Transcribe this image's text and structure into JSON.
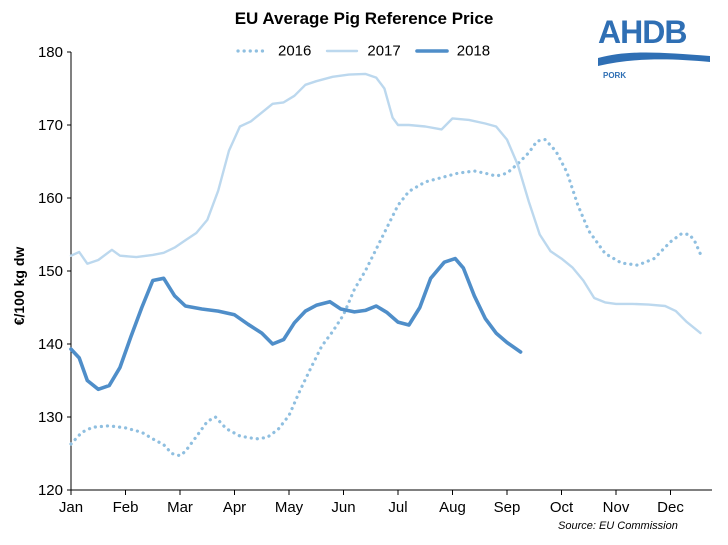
{
  "chart_data": {
    "type": "line",
    "title": "EU Average Pig Reference Price",
    "ylabel": "€/100 kg dw",
    "xlabel": "",
    "ylim": [
      120,
      180
    ],
    "yticks": [
      120,
      130,
      140,
      150,
      160,
      170,
      180
    ],
    "xlim": [
      1,
      12.75
    ],
    "xticks": [
      "Jan",
      "Feb",
      "Mar",
      "Apr",
      "May",
      "Jun",
      "Jul",
      "Aug",
      "Sep",
      "Oct",
      "Nov",
      "Dec"
    ],
    "legend_position": "top",
    "grid": false,
    "series": [
      {
        "name": "2016",
        "style": "dotted",
        "color": "#8fbfe0",
        "points": [
          [
            1.0,
            126.3
          ],
          [
            1.2,
            127.9
          ],
          [
            1.4,
            128.6
          ],
          [
            1.7,
            128.8
          ],
          [
            2.0,
            128.5
          ],
          [
            2.3,
            127.9
          ],
          [
            2.5,
            127.0
          ],
          [
            2.7,
            126.2
          ],
          [
            2.85,
            125.0
          ],
          [
            3.0,
            124.7
          ],
          [
            3.1,
            125.3
          ],
          [
            3.3,
            127.3
          ],
          [
            3.5,
            129.4
          ],
          [
            3.65,
            130.0
          ],
          [
            3.85,
            128.4
          ],
          [
            4.1,
            127.4
          ],
          [
            4.4,
            127.0
          ],
          [
            4.6,
            127.2
          ],
          [
            4.8,
            128.3
          ],
          [
            5.0,
            130.2
          ],
          [
            5.2,
            133.6
          ],
          [
            5.4,
            136.7
          ],
          [
            5.6,
            139.7
          ],
          [
            5.8,
            141.7
          ],
          [
            6.0,
            144.0
          ],
          [
            6.2,
            147.5
          ],
          [
            6.4,
            150.0
          ],
          [
            6.6,
            153.0
          ],
          [
            6.8,
            156.0
          ],
          [
            7.0,
            159.0
          ],
          [
            7.2,
            160.9
          ],
          [
            7.5,
            162.2
          ],
          [
            7.8,
            162.8
          ],
          [
            8.1,
            163.4
          ],
          [
            8.4,
            163.7
          ],
          [
            8.6,
            163.4
          ],
          [
            8.8,
            163.0
          ],
          [
            9.0,
            163.4
          ],
          [
            9.2,
            164.7
          ],
          [
            9.4,
            166.2
          ],
          [
            9.55,
            167.8
          ],
          [
            9.7,
            168.0
          ],
          [
            9.9,
            166.4
          ],
          [
            10.1,
            163.5
          ],
          [
            10.3,
            159.0
          ],
          [
            10.5,
            155.5
          ],
          [
            10.8,
            152.4
          ],
          [
            11.1,
            151.1
          ],
          [
            11.4,
            150.8
          ],
          [
            11.7,
            151.7
          ],
          [
            12.0,
            154.0
          ],
          [
            12.2,
            155.1
          ],
          [
            12.35,
            155.0
          ],
          [
            12.45,
            154.0
          ],
          [
            12.55,
            152.3
          ]
        ]
      },
      {
        "name": "2017",
        "style": "solid-thin",
        "color": "#bcd8ee",
        "points": [
          [
            1.0,
            152.1
          ],
          [
            1.15,
            152.6
          ],
          [
            1.3,
            151.0
          ],
          [
            1.5,
            151.5
          ],
          [
            1.75,
            152.9
          ],
          [
            1.9,
            152.1
          ],
          [
            2.2,
            151.9
          ],
          [
            2.5,
            152.2
          ],
          [
            2.7,
            152.5
          ],
          [
            2.9,
            153.2
          ],
          [
            3.1,
            154.2
          ],
          [
            3.3,
            155.2
          ],
          [
            3.5,
            157.0
          ],
          [
            3.7,
            161.0
          ],
          [
            3.9,
            166.5
          ],
          [
            4.1,
            169.8
          ],
          [
            4.3,
            170.5
          ],
          [
            4.5,
            171.7
          ],
          [
            4.7,
            172.9
          ],
          [
            4.9,
            173.1
          ],
          [
            5.1,
            174.0
          ],
          [
            5.3,
            175.5
          ],
          [
            5.5,
            176.0
          ],
          [
            5.8,
            176.6
          ],
          [
            6.1,
            176.9
          ],
          [
            6.4,
            177.0
          ],
          [
            6.6,
            176.5
          ],
          [
            6.75,
            175.0
          ],
          [
            6.9,
            171.0
          ],
          [
            7.0,
            170.0
          ],
          [
            7.2,
            170.0
          ],
          [
            7.5,
            169.8
          ],
          [
            7.8,
            169.4
          ],
          [
            8.0,
            170.9
          ],
          [
            8.3,
            170.7
          ],
          [
            8.6,
            170.2
          ],
          [
            8.8,
            169.8
          ],
          [
            9.0,
            168.0
          ],
          [
            9.2,
            164.5
          ],
          [
            9.4,
            159.5
          ],
          [
            9.6,
            155.0
          ],
          [
            9.8,
            152.7
          ],
          [
            10.0,
            151.7
          ],
          [
            10.2,
            150.5
          ],
          [
            10.4,
            148.7
          ],
          [
            10.6,
            146.3
          ],
          [
            10.8,
            145.7
          ],
          [
            11.0,
            145.5
          ],
          [
            11.3,
            145.5
          ],
          [
            11.6,
            145.4
          ],
          [
            11.9,
            145.2
          ],
          [
            12.1,
            144.5
          ],
          [
            12.3,
            143.0
          ],
          [
            12.55,
            141.5
          ]
        ]
      },
      {
        "name": "2018",
        "style": "solid-thick",
        "color": "#4f8ec9",
        "points": [
          [
            1.0,
            139.3
          ],
          [
            1.15,
            138.1
          ],
          [
            1.3,
            135.0
          ],
          [
            1.5,
            133.8
          ],
          [
            1.7,
            134.3
          ],
          [
            1.9,
            136.8
          ],
          [
            2.1,
            141.0
          ],
          [
            2.3,
            145.0
          ],
          [
            2.5,
            148.7
          ],
          [
            2.7,
            149.0
          ],
          [
            2.9,
            146.6
          ],
          [
            3.1,
            145.2
          ],
          [
            3.4,
            144.8
          ],
          [
            3.7,
            144.5
          ],
          [
            4.0,
            144.0
          ],
          [
            4.25,
            142.7
          ],
          [
            4.5,
            141.5
          ],
          [
            4.7,
            140.0
          ],
          [
            4.9,
            140.6
          ],
          [
            5.1,
            142.9
          ],
          [
            5.3,
            144.5
          ],
          [
            5.5,
            145.3
          ],
          [
            5.75,
            145.8
          ],
          [
            5.95,
            144.8
          ],
          [
            6.2,
            144.4
          ],
          [
            6.4,
            144.6
          ],
          [
            6.6,
            145.2
          ],
          [
            6.8,
            144.3
          ],
          [
            7.0,
            143.0
          ],
          [
            7.2,
            142.6
          ],
          [
            7.4,
            145.0
          ],
          [
            7.6,
            149.0
          ],
          [
            7.85,
            151.2
          ],
          [
            8.05,
            151.7
          ],
          [
            8.2,
            150.4
          ],
          [
            8.4,
            146.6
          ],
          [
            8.6,
            143.5
          ],
          [
            8.8,
            141.5
          ],
          [
            9.0,
            140.2
          ],
          [
            9.25,
            138.9
          ]
        ]
      }
    ],
    "source": "Source: EU Commission"
  },
  "logo": {
    "name": "AHDB",
    "subtitle": "PORK"
  }
}
